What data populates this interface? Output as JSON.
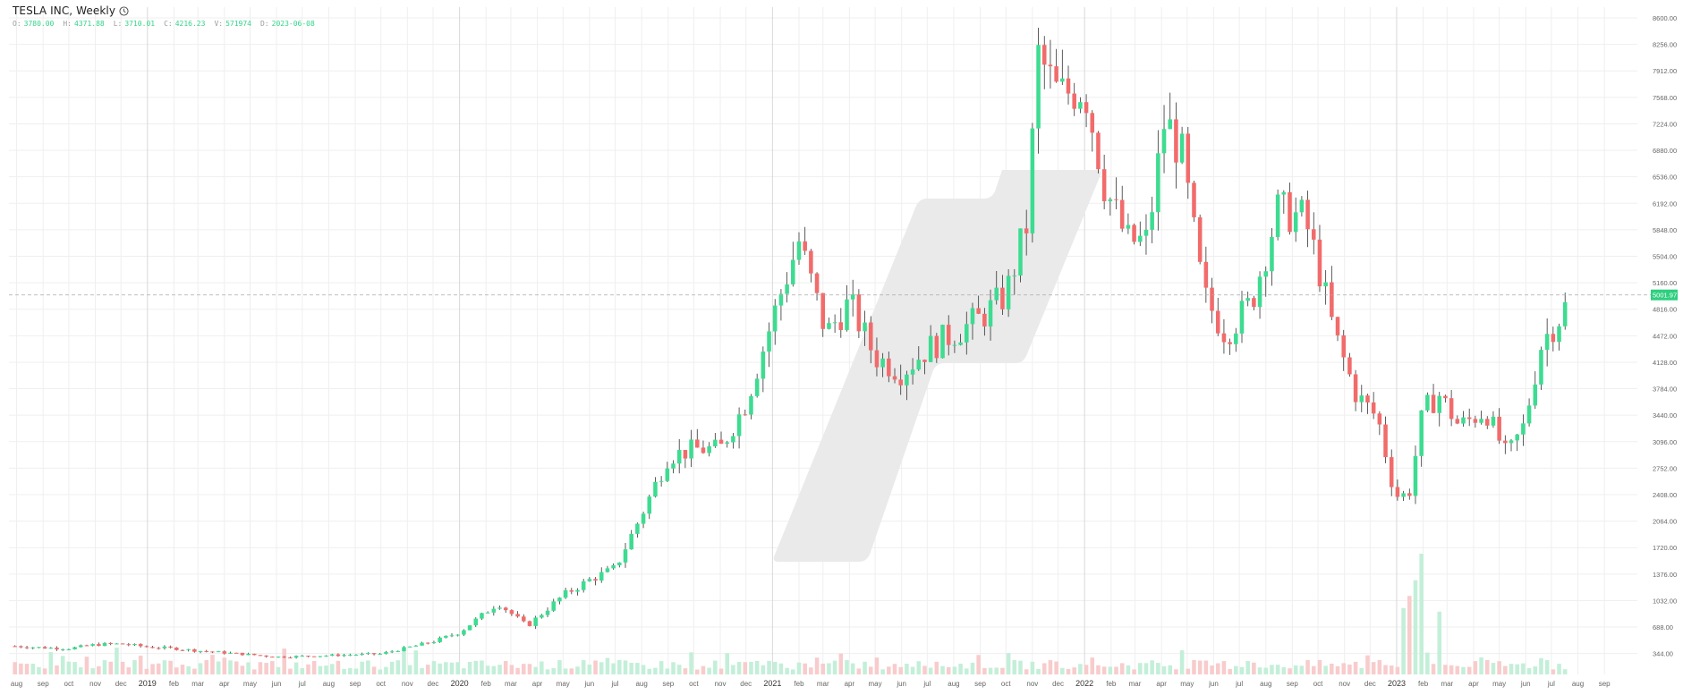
{
  "header": {
    "title": "TESLA INC, Weekly",
    "ohlc": [
      {
        "label": "O:",
        "value": "3780.00"
      },
      {
        "label": "H:",
        "value": "4371.88"
      },
      {
        "label": "L:",
        "value": "3710.01"
      },
      {
        "label": "C:",
        "value": "4216.23"
      },
      {
        "label": "V:",
        "value": "571974"
      },
      {
        "label": "D:",
        "value": "2023-06-08"
      }
    ]
  },
  "colors": {
    "up": "#3ddc91",
    "down": "#f26b6b",
    "up_volume": "#c3efd9",
    "down_volume": "#f8cccc",
    "grid": "#efefef",
    "text": "#666666",
    "price_tag": "#2fcf7f"
  },
  "chart_data": {
    "type": "candlestick",
    "interval": "Weekly",
    "y_ticks": [
      "344.00",
      "688.00",
      "1032.00",
      "1376.00",
      "1720.00",
      "2064.00",
      "2408.00",
      "2752.00",
      "3096.00",
      "3440.00",
      "3784.00",
      "4128.00",
      "4472.00",
      "4816.00",
      "5160.00",
      "5504.00",
      "5848.00",
      "6192.00",
      "6536.00",
      "6880.00",
      "7224.00",
      "7568.00",
      "7912.00",
      "8256.00",
      "8600.00"
    ],
    "ylim": [
      224,
      8600
    ],
    "last_price": "5001.97",
    "x_labels": [
      "aug",
      "sep",
      "oct",
      "nov",
      "dec",
      "2019",
      "feb",
      "mar",
      "apr",
      "may",
      "jun",
      "jul",
      "aug",
      "sep",
      "oct",
      "nov",
      "dec",
      "2020",
      "feb",
      "mar",
      "apr",
      "may",
      "jun",
      "jul",
      "aug",
      "sep",
      "oct",
      "nov",
      "dec",
      "2021",
      "feb",
      "mar",
      "apr",
      "may",
      "jun",
      "jul",
      "aug",
      "sep",
      "oct",
      "nov",
      "dec",
      "2022",
      "feb",
      "mar",
      "apr",
      "may",
      "jun",
      "jul",
      "aug",
      "sep",
      "oct",
      "nov",
      "dec",
      "2023",
      "feb",
      "mar",
      "apr",
      "may",
      "jun",
      "jul",
      "aug",
      "sep"
    ],
    "x_range": [
      "2018-07-23",
      "2023-10-20"
    ],
    "label_dates": [
      "2018-08-01",
      "2018-09-01",
      "2018-10-01",
      "2018-11-01",
      "2018-12-01",
      "2019-01-01",
      "2019-02-01",
      "2019-03-01",
      "2019-04-01",
      "2019-05-01",
      "2019-06-01",
      "2019-07-01",
      "2019-08-01",
      "2019-09-01",
      "2019-10-01",
      "2019-11-01",
      "2019-12-01",
      "2020-01-01",
      "2020-02-01",
      "2020-03-01",
      "2020-04-01",
      "2020-05-01",
      "2020-06-01",
      "2020-07-01",
      "2020-08-01",
      "2020-09-01",
      "2020-10-01",
      "2020-11-01",
      "2020-12-01",
      "2021-01-01",
      "2021-02-01",
      "2021-03-01",
      "2021-04-01",
      "2021-05-01",
      "2021-06-01",
      "2021-07-01",
      "2021-08-01",
      "2021-09-01",
      "2021-10-01",
      "2021-11-01",
      "2021-12-01",
      "2022-01-01",
      "2022-02-01",
      "2022-03-01",
      "2022-04-01",
      "2022-05-01",
      "2022-06-01",
      "2022-07-01",
      "2022-08-01",
      "2022-09-01",
      "2022-10-01",
      "2022-11-01",
      "2022-12-01",
      "2023-01-01",
      "2023-02-01",
      "2023-03-01",
      "2023-04-01",
      "2023-05-01",
      "2023-06-01",
      "2023-07-01",
      "2023-08-01",
      "2023-09-01"
    ],
    "start_date": "2018-07-30",
    "close_anchors": [
      [
        "2018-07-30",
        440
      ],
      [
        "2018-09-01",
        420
      ],
      [
        "2018-10-01",
        410
      ],
      [
        "2018-11-01",
        460
      ],
      [
        "2018-12-01",
        470
      ],
      [
        "2019-01-01",
        430
      ],
      [
        "2019-02-01",
        410
      ],
      [
        "2019-03-01",
        380
      ],
      [
        "2019-05-01",
        330
      ],
      [
        "2019-06-01",
        300
      ],
      [
        "2019-08-01",
        320
      ],
      [
        "2019-10-01",
        340
      ],
      [
        "2019-11-01",
        420
      ],
      [
        "2019-12-01",
        500
      ],
      [
        "2020-01-01",
        620
      ],
      [
        "2020-02-15",
        1000
      ],
      [
        "2020-03-20",
        700
      ],
      [
        "2020-05-01",
        1100
      ],
      [
        "2020-06-01",
        1300
      ],
      [
        "2020-07-01",
        1450
      ],
      [
        "2020-08-01",
        2150
      ],
      [
        "2020-09-01",
        2900
      ],
      [
        "2020-10-01",
        3000
      ],
      [
        "2020-11-01",
        3000
      ],
      [
        "2020-12-01",
        3600
      ],
      [
        "2021-01-10",
        5000
      ],
      [
        "2021-02-01",
        5700
      ],
      [
        "2021-03-05",
        4500
      ],
      [
        "2021-04-01",
        4900
      ],
      [
        "2021-05-01",
        4200
      ],
      [
        "2021-06-01",
        4000
      ],
      [
        "2021-07-01",
        4300
      ],
      [
        "2021-08-01",
        4500
      ],
      [
        "2021-09-01",
        4700
      ],
      [
        "2021-10-01",
        5000
      ],
      [
        "2021-10-25",
        5900
      ],
      [
        "2021-11-08",
        8100
      ],
      [
        "2021-12-01",
        7600
      ],
      [
        "2022-01-01",
        7700
      ],
      [
        "2022-01-25",
        6400
      ],
      [
        "2022-02-20",
        5700
      ],
      [
        "2022-03-15",
        5700
      ],
      [
        "2022-04-05",
        7300
      ],
      [
        "2022-04-25",
        6800
      ],
      [
        "2022-05-20",
        5000
      ],
      [
        "2022-06-15",
        4500
      ],
      [
        "2022-07-15",
        4900
      ],
      [
        "2022-08-15",
        6100
      ],
      [
        "2022-09-15",
        6000
      ],
      [
        "2022-10-01",
        5400
      ],
      [
        "2022-10-20",
        4500
      ],
      [
        "2022-11-15",
        3700
      ],
      [
        "2022-12-10",
        3400
      ],
      [
        "2022-12-30",
        2400
      ],
      [
        "2023-01-15",
        2400
      ],
      [
        "2023-02-01",
        3500
      ],
      [
        "2023-02-20",
        3700
      ],
      [
        "2023-03-15",
        3300
      ],
      [
        "2023-04-15",
        3500
      ],
      [
        "2023-05-10",
        2900
      ],
      [
        "2023-05-30",
        3300
      ],
      [
        "2023-06-20",
        4400
      ],
      [
        "2023-07-10",
        4700
      ],
      [
        "2023-07-20",
        4900
      ]
    ],
    "volume_high": [
      {
        "date": "2023-01-09",
        "value": 0.55
      },
      {
        "date": "2023-01-16",
        "value": 0.65
      },
      {
        "date": "2023-01-23",
        "value": 0.78
      },
      {
        "date": "2023-01-30",
        "value": 1.0
      },
      {
        "date": "2023-02-20",
        "value": 0.52
      }
    ]
  }
}
